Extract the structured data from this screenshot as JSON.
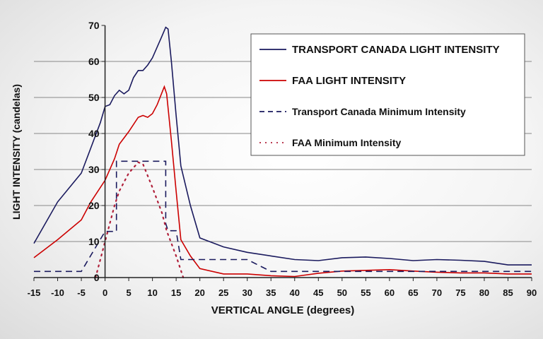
{
  "chart_data": {
    "type": "line",
    "title": "",
    "xlabel": "VERTICAL ANGLE (degrees)",
    "ylabel": "LIGHT INTENSITY (candelas)",
    "xlim": [
      -15,
      90
    ],
    "ylim": [
      0,
      70
    ],
    "xticks": [
      -15,
      -10,
      -5,
      0,
      5,
      10,
      15,
      20,
      25,
      30,
      35,
      40,
      45,
      50,
      55,
      60,
      65,
      70,
      75,
      80,
      85,
      90
    ],
    "yticks": [
      0,
      10,
      20,
      30,
      40,
      50,
      60,
      70
    ],
    "grid": "horizontal",
    "legend_position": "top-right",
    "series": [
      {
        "name": "TRANSPORT CANADA LIGHT INTENSITY",
        "color": "#1a1a5e",
        "style": "solid",
        "x": [
          -15,
          -10,
          -5,
          -3,
          -1,
          0,
          1,
          2,
          3,
          4,
          5,
          6,
          7,
          8,
          9,
          10,
          12,
          12.8,
          13.3,
          14,
          15,
          16,
          18,
          20,
          25,
          30,
          35,
          40,
          45,
          50,
          55,
          60,
          65,
          70,
          75,
          80,
          85,
          90
        ],
        "y": [
          9.5,
          21,
          29,
          36,
          43,
          47.5,
          48,
          50.5,
          52,
          51,
          52,
          55.5,
          57.5,
          57.5,
          59,
          61,
          67,
          69.5,
          69,
          60,
          45,
          31,
          20,
          11,
          8.5,
          7,
          6,
          5,
          4.7,
          5.5,
          5.7,
          5.3,
          4.7,
          5,
          4.8,
          4.5,
          3.5,
          3.5
        ]
      },
      {
        "name": "FAA LIGHT INTENSITY",
        "color": "#cc0000",
        "style": "solid",
        "x": [
          -15,
          -10,
          -5,
          -3,
          0,
          2,
          3,
          5,
          7,
          8,
          9,
          10,
          11,
          12.5,
          13,
          14,
          15,
          16,
          18,
          20,
          25,
          30,
          35,
          40,
          45,
          50,
          55,
          60,
          65,
          70,
          75,
          80,
          85,
          90
        ],
        "y": [
          5.5,
          10.5,
          16,
          21,
          27,
          33,
          37,
          40.5,
          44.5,
          45,
          44.5,
          45.5,
          48,
          53,
          51,
          38,
          24,
          10.5,
          6,
          2.5,
          1,
          1,
          0.5,
          0.3,
          1.2,
          1.8,
          2,
          2.2,
          1.8,
          1.5,
          1.3,
          1.3,
          1,
          1
        ]
      },
      {
        "name": "Transport Canada Minimum Intensity",
        "color": "#1a1a5e",
        "style": "dashed",
        "x": [
          -15,
          -5,
          0,
          2.4,
          2.4,
          12.8,
          12.8,
          13.3,
          15,
          16,
          30,
          35,
          90
        ],
        "y": [
          1.7,
          1.7,
          12.8,
          12.8,
          32.3,
          32.3,
          15,
          13,
          13,
          5,
          5,
          1.7,
          1.7
        ]
      },
      {
        "name": "FAA Minimum Intensity",
        "color": "#b0203a",
        "style": "dotted",
        "x": [
          -2,
          0,
          1,
          2,
          3,
          5,
          7,
          8,
          10,
          12,
          13,
          15,
          16.5
        ],
        "y": [
          0,
          10,
          15,
          20,
          24,
          29,
          32,
          31.5,
          25,
          18,
          13,
          6,
          0
        ]
      }
    ]
  }
}
